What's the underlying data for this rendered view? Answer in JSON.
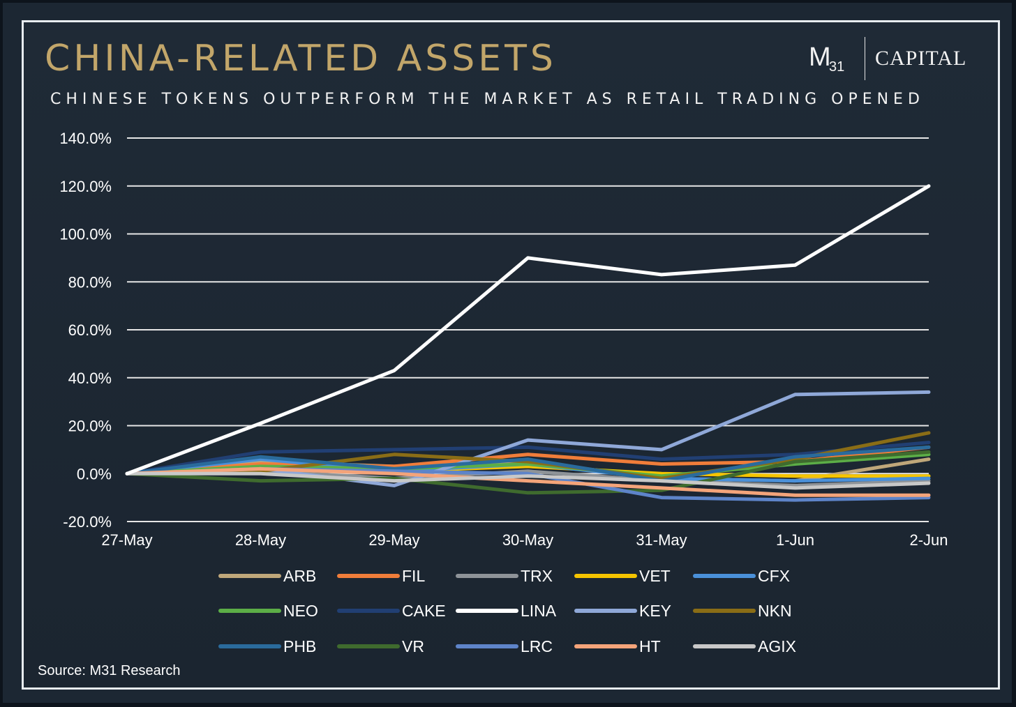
{
  "header": {
    "title": "CHINA-RELATED ASSETS",
    "subtitle": "CHINESE TOKENS OUTPERFORM THE MARKET AS RETAIL TRADING OPENED"
  },
  "logo": {
    "m": "M",
    "sub": "31",
    "capital": "CAPITAL"
  },
  "footer": {
    "source": "Source: M31 Research"
  },
  "chart_data": {
    "type": "line",
    "title": "CHINA-RELATED ASSETS",
    "subtitle": "CHINESE TOKENS OUTPERFORM THE MARKET AS RETAIL TRADING OPENED",
    "xlabel": "",
    "ylabel": "",
    "categories": [
      "27-May",
      "28-May",
      "29-May",
      "30-May",
      "31-May",
      "1-Jun",
      "2-Jun"
    ],
    "ylim": [
      -20,
      140
    ],
    "yticks": [
      -20,
      0,
      20,
      40,
      60,
      80,
      100,
      120,
      140
    ],
    "ytick_labels": [
      "-20.0%",
      "0.0%",
      "20.0%",
      "40.0%",
      "60.0%",
      "80.0%",
      "100.0%",
      "120.0%",
      "140.0%"
    ],
    "grid": "horizontal",
    "legend_position": "bottom",
    "series": [
      {
        "name": "ARB",
        "color": "#bfa77a",
        "values": [
          0,
          5,
          3,
          5,
          -2,
          -3,
          6
        ]
      },
      {
        "name": "FIL",
        "color": "#f07d3a",
        "values": [
          0,
          4,
          3,
          8,
          4,
          5,
          11
        ]
      },
      {
        "name": "TRX",
        "color": "#8e9398",
        "values": [
          0,
          1,
          -2,
          1,
          -3,
          -5,
          -3
        ]
      },
      {
        "name": "VET",
        "color": "#f5c400",
        "values": [
          0,
          2,
          1,
          3,
          0,
          -1,
          -1
        ]
      },
      {
        "name": "CFX",
        "color": "#4a90d9",
        "values": [
          0,
          6,
          1,
          4,
          -2,
          -3,
          -2
        ]
      },
      {
        "name": "NEO",
        "color": "#5cae47",
        "values": [
          0,
          3,
          2,
          4,
          -1,
          4,
          8
        ]
      },
      {
        "name": "CAKE",
        "color": "#213f73",
        "values": [
          0,
          9,
          10,
          11,
          6,
          8,
          13
        ]
      },
      {
        "name": "LINA",
        "color": "#ffffff",
        "values": [
          0,
          21,
          43,
          90,
          83,
          87,
          120
        ]
      },
      {
        "name": "KEY",
        "color": "#8fa8d8",
        "values": [
          0,
          2,
          -5,
          14,
          10,
          33,
          34
        ]
      },
      {
        "name": "NKN",
        "color": "#8a6d16",
        "values": [
          0,
          1,
          8,
          5,
          -2,
          6,
          17
        ]
      },
      {
        "name": "PHB",
        "color": "#2a6b9c",
        "values": [
          0,
          7,
          2,
          6,
          -3,
          7,
          11
        ]
      },
      {
        "name": "VR",
        "color": "#3f6b2e",
        "values": [
          0,
          -3,
          -2,
          -8,
          -7,
          5,
          9
        ]
      },
      {
        "name": "LRC",
        "color": "#5e84c9",
        "values": [
          0,
          2,
          1,
          0,
          -10,
          -11,
          -10
        ]
      },
      {
        "name": "HT",
        "color": "#f4a47a",
        "values": [
          0,
          2,
          0,
          -3,
          -6,
          -9,
          -9
        ]
      },
      {
        "name": "AGIX",
        "color": "#c8c8c8",
        "values": [
          0,
          0,
          -3,
          -1,
          -3,
          -6,
          -4
        ]
      }
    ]
  }
}
